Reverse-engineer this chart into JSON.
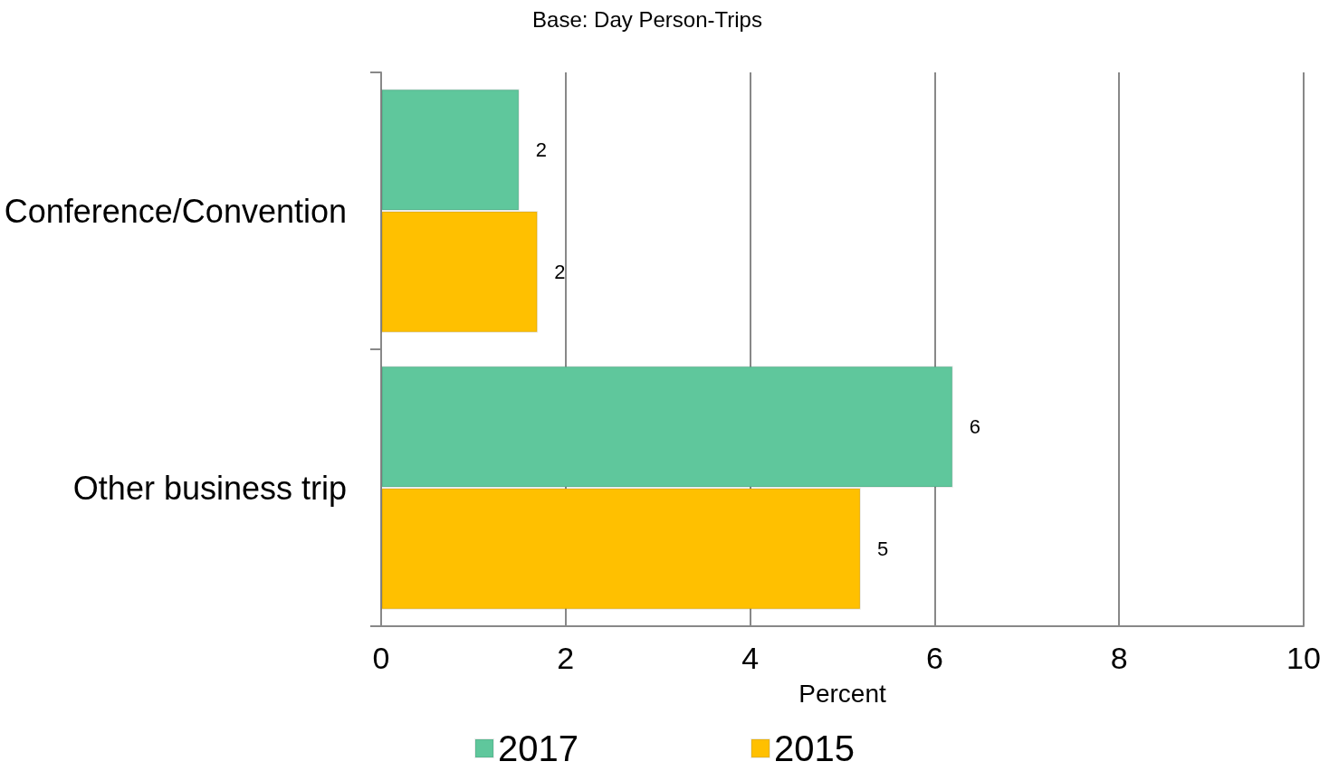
{
  "chart_data": {
    "type": "bar",
    "orientation": "horizontal",
    "title": "Base: Day Person-Trips",
    "xlabel": "Percent",
    "categories": [
      "Conference/Convention",
      "Other business trip"
    ],
    "series": [
      {
        "name": "2017",
        "color": "#5fc79c",
        "values": [
          1.5,
          6.2
        ],
        "value_labels": [
          "2",
          "6"
        ]
      },
      {
        "name": "2015",
        "color": "#ffc000",
        "values": [
          1.7,
          5.2
        ],
        "value_labels": [
          "2",
          "5"
        ]
      }
    ],
    "xlim": [
      0,
      10
    ],
    "xticks": [
      0,
      2,
      4,
      6,
      8,
      10
    ],
    "grid": "x",
    "legend": "bottom"
  }
}
